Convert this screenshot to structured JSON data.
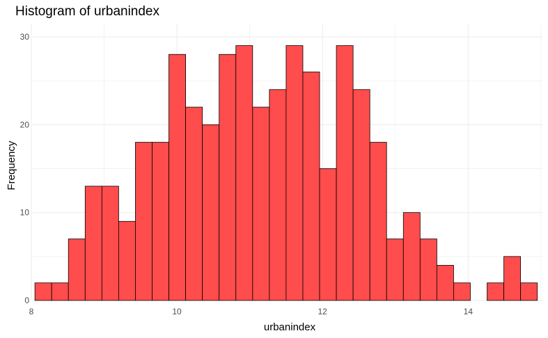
{
  "chart_data": {
    "type": "bar",
    "title": "Histogram of urbanindex",
    "xlabel": "urbanindex",
    "ylabel": "Frequency",
    "xlim": [
      8.02,
      15.02
    ],
    "ylim": [
      0,
      30
    ],
    "x_ticks": [
      8,
      10,
      12,
      14
    ],
    "y_ticks": [
      0,
      10,
      20,
      30
    ],
    "grid": true,
    "bin_width": 0.23,
    "bin_start": 8.05,
    "values": [
      2,
      2,
      7,
      13,
      13,
      9,
      18,
      18,
      28,
      22,
      20,
      28,
      29,
      22,
      24,
      29,
      26,
      15,
      29,
      24,
      18,
      7,
      10,
      7,
      4,
      2,
      0,
      2,
      5,
      2
    ],
    "bar_color": "#ff4c4c",
    "bar_border_color": "#000000"
  }
}
